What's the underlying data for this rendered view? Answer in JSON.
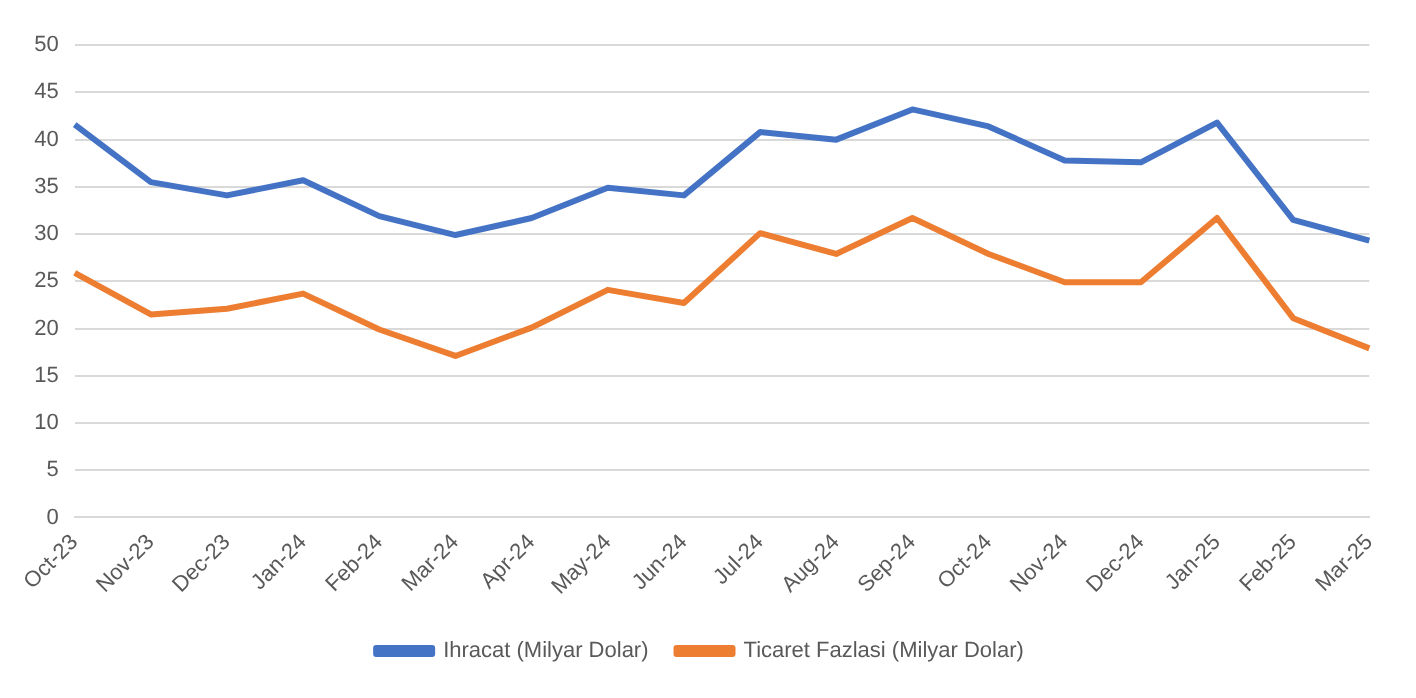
{
  "chart_data": {
    "type": "line",
    "categories": [
      "Oct-23",
      "Nov-23",
      "Dec-23",
      "Jan-24",
      "Feb-24",
      "Mar-24",
      "Apr-24",
      "May-24",
      "Jun-24",
      "Jul-24",
      "Aug-24",
      "Sep-24",
      "Oct-24",
      "Nov-24",
      "Dec-24",
      "Jan-25",
      "Feb-25",
      "Mar-25"
    ],
    "series": [
      {
        "name": "Ihracat (Milyar Dolar)",
        "color": "#4472c4",
        "values": [
          41.6,
          35.5,
          34.1,
          35.7,
          31.9,
          29.9,
          31.7,
          34.9,
          34.1,
          40.8,
          40.0,
          43.2,
          41.4,
          37.8,
          37.6,
          41.8,
          31.5,
          29.3
        ]
      },
      {
        "name": "Ticaret Fazlasi (Milyar Dolar)",
        "color": "#ed7d31",
        "values": [
          25.9,
          21.5,
          22.1,
          23.7,
          19.9,
          17.1,
          20.1,
          24.1,
          22.7,
          30.1,
          27.9,
          31.7,
          27.9,
          24.9,
          24.9,
          31.7,
          21.1,
          17.9
        ]
      }
    ],
    "ylim": [
      0,
      50
    ],
    "yticks": [
      0,
      5,
      10,
      15,
      20,
      25,
      30,
      35,
      40,
      45,
      50
    ],
    "grid": "y",
    "legend": "bottom",
    "marker": "none",
    "line_style": "solid"
  }
}
